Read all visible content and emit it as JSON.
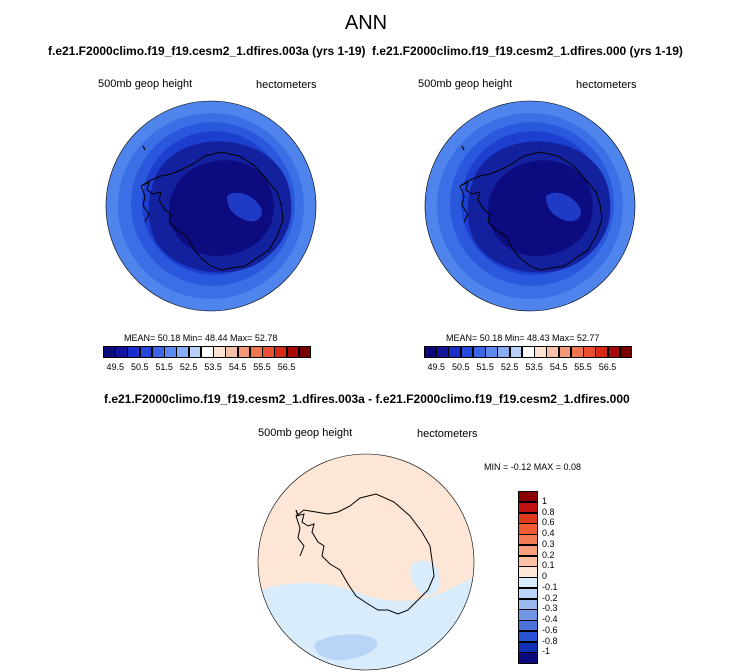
{
  "title": "ANN",
  "panels": [
    {
      "subtitle": "f.e21.F2000climo.f19_f19.cesm2_1.dfires.003a (yrs 1-19)",
      "left_label": "500mb geop height",
      "right_label": "hectometers",
      "stats": "MEAN=  50.18  Min=  48.44  Max=  52.78"
    },
    {
      "subtitle": "f.e21.F2000climo.f19_f19.cesm2_1.dfires.000 (yrs 1-19)",
      "left_label": "500mb geop height",
      "right_label": "hectometers",
      "stats": "MEAN=  50.18  Min=  48.43  Max=  52.77"
    }
  ],
  "colorbar": {
    "colors": [
      "#0a0a7a",
      "#13139c",
      "#1a2ecc",
      "#2448dc",
      "#3a66e6",
      "#5c88ee",
      "#88acf4",
      "#b8d0f8",
      "#ffffff",
      "#fde2d2",
      "#f8c0a8",
      "#f49a7c",
      "#ef7452",
      "#e84e30",
      "#d42a16",
      "#a80c08",
      "#780000"
    ],
    "ticks": [
      "49.5",
      "50.5",
      "51.5",
      "52.5",
      "53.5",
      "54.5",
      "55.5",
      "56.5"
    ]
  },
  "diff": {
    "subtitle": "f.e21.F2000climo.f19_f19.cesm2_1.dfires.003a - f.e21.F2000climo.f19_f19.cesm2_1.dfires.000",
    "left_label": "500mb geop height",
    "right_label": "hectometers",
    "stats": "MIN =  -0.12 MAX =   0.08",
    "colorbar": {
      "colors": [
        "#8b0000",
        "#c01010",
        "#e03a1e",
        "#f05c34",
        "#f47c56",
        "#f8a07c",
        "#fcc0a4",
        "#fde6d6",
        "#d8ecfc",
        "#b8d4f6",
        "#98b8ee",
        "#7096e4",
        "#4a74dc",
        "#2a52d4",
        "#1030b8",
        "#0a0a7a"
      ],
      "ticks": [
        "1",
        "0.8",
        "0.6",
        "0.4",
        "0.3",
        "0.2",
        "0.1",
        "0",
        "-0.1",
        "-0.2",
        "-0.3",
        "-0.4",
        "-0.6",
        "-0.8",
        "-1"
      ]
    }
  }
}
